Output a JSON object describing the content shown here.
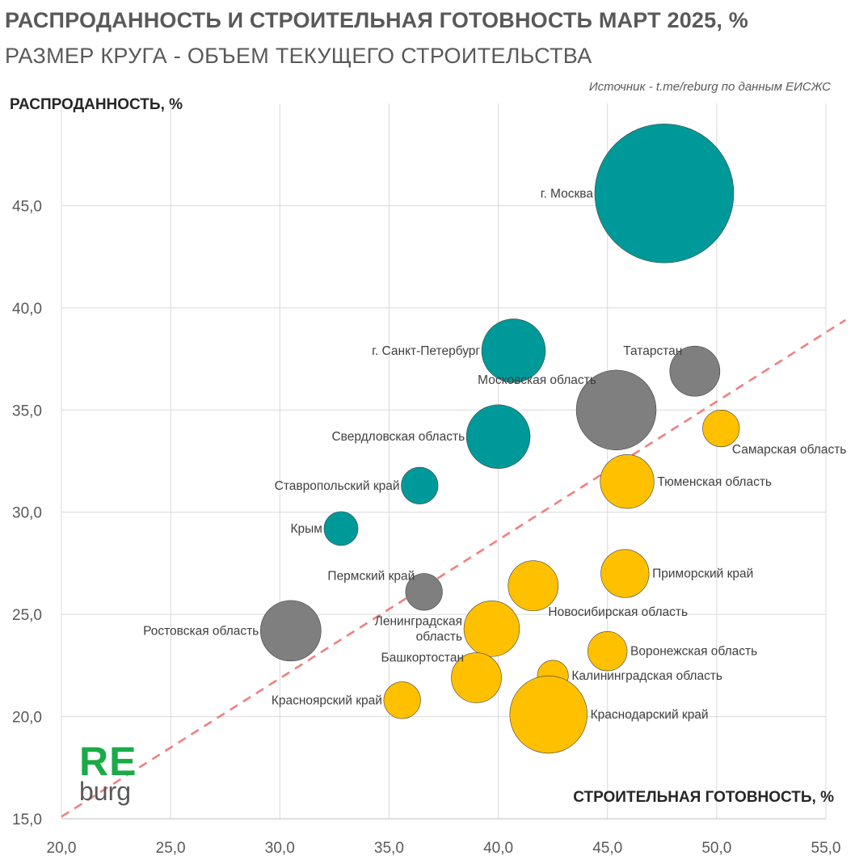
{
  "header": {
    "title": "РАСПРОДАННОСТЬ И СТРОИТЕЛЬНАЯ ГОТОВНОСТЬ МАРТ 2025, %",
    "subtitle": "РАЗМЕР КРУГА - ОБЪЕМ ТЕКУЩЕГО СТРОИТЕЛЬСТВА",
    "source": "Источник - t.me/reburg по данным ЕИСЖС"
  },
  "logo": {
    "re": "RE",
    "burg": "burg"
  },
  "colors": {
    "teal": "#009999",
    "gray": "#7f7f7f",
    "gold": "#ffc000",
    "trend": "#f08080",
    "grid": "#d9d9d9"
  },
  "chart_data": {
    "type": "bubble",
    "title": "РАСПРОДАННОСТЬ И СТРОИТЕЛЬНАЯ ГОТОВНОСТЬ МАРТ 2025, %",
    "xlabel": "СТРОИТЕЛЬНАЯ ГОТОВНОСТЬ, %",
    "ylabel": "РАСПРОДАННОСТЬ, %",
    "xlim": [
      20,
      55
    ],
    "ylim": [
      15,
      50
    ],
    "xticks": [
      "20,0",
      "25,0",
      "30,0",
      "35,0",
      "40,0",
      "45,0",
      "50,0",
      "55,0"
    ],
    "yticks": [
      "15,0",
      "20,0",
      "25,0",
      "30,0",
      "35,0",
      "40,0",
      "45,0"
    ],
    "trendline": {
      "style": "dashed",
      "from": [
        20,
        15.1
      ],
      "to": [
        55,
        38.8
      ]
    },
    "points": [
      {
        "name": "г. Москва",
        "lines": [
          "г. Москва"
        ],
        "x": 47.6,
        "y": 45.6,
        "size": 100,
        "group": "teal",
        "label_pos": "left"
      },
      {
        "name": "г. Санкт-Петербург",
        "lines": [
          "г. Санкт-Петербург"
        ],
        "x": 40.7,
        "y": 37.9,
        "size": 21,
        "group": "teal",
        "label_pos": "left"
      },
      {
        "name": "Татарстан",
        "lines": [
          "Татарстан"
        ],
        "x": 49.0,
        "y": 36.9,
        "size": 13,
        "group": "gray",
        "label_pos": "top-left"
      },
      {
        "name": "Московская область",
        "lines": [
          "Московская область"
        ],
        "x": 45.4,
        "y": 35.0,
        "size": 33,
        "group": "gray",
        "label_pos": "top-left"
      },
      {
        "name": "Самарская область",
        "lines": [
          "Самарская область"
        ],
        "x": 50.2,
        "y": 34.1,
        "size": 7,
        "group": "gold",
        "label_pos": "bottom-right"
      },
      {
        "name": "Свердловская область",
        "lines": [
          "Свердловская область"
        ],
        "x": 40.0,
        "y": 33.7,
        "size": 21,
        "group": "teal",
        "label_pos": "left"
      },
      {
        "name": "Тюменская область",
        "lines": [
          "Тюменская область"
        ],
        "x": 45.9,
        "y": 31.5,
        "size": 15,
        "group": "gold",
        "label_pos": "right"
      },
      {
        "name": "Ставропольский край",
        "lines": [
          "Ставропольский край"
        ],
        "x": 36.4,
        "y": 31.3,
        "size": 7,
        "group": "teal",
        "label_pos": "left"
      },
      {
        "name": "Крым",
        "lines": [
          "Крым"
        ],
        "x": 32.8,
        "y": 29.2,
        "size": 6,
        "group": "teal",
        "label_pos": "left"
      },
      {
        "name": "Приморский край",
        "lines": [
          "Приморский край"
        ],
        "x": 45.8,
        "y": 27.0,
        "size": 12,
        "group": "gold",
        "label_pos": "right"
      },
      {
        "name": "Новосибирская область",
        "lines": [
          "Новосибирская область"
        ],
        "x": 41.6,
        "y": 26.4,
        "size": 13,
        "group": "gold",
        "label_pos": "bottom-right"
      },
      {
        "name": "Пермский край",
        "lines": [
          "Пермский край"
        ],
        "x": 36.6,
        "y": 26.1,
        "size": 7,
        "group": "gray",
        "label_pos": "top-left"
      },
      {
        "name": "Ростовская область",
        "lines": [
          "Ростовская область"
        ],
        "x": 30.5,
        "y": 24.2,
        "size": 19,
        "group": "gray",
        "label_pos": "left"
      },
      {
        "name": "Ленинградская область",
        "lines": [
          "Ленинградская",
          "область"
        ],
        "x": 39.7,
        "y": 24.3,
        "size": 16,
        "group": "gold",
        "label_pos": "left"
      },
      {
        "name": "Воронежская область",
        "lines": [
          "Воронежская область"
        ],
        "x": 45.0,
        "y": 23.2,
        "size": 8,
        "group": "gold",
        "label_pos": "right"
      },
      {
        "name": "Калининградская область",
        "lines": [
          "Калининградская область"
        ],
        "x": 42.5,
        "y": 22.0,
        "size": 5,
        "group": "gold",
        "label_pos": "right"
      },
      {
        "name": "Башкортостан",
        "lines": [
          "Башкортостан"
        ],
        "x": 39.0,
        "y": 21.9,
        "size": 13,
        "group": "gold",
        "label_pos": "top-left"
      },
      {
        "name": "Красноярский край",
        "lines": [
          "Красноярский край"
        ],
        "x": 35.6,
        "y": 20.8,
        "size": 7,
        "group": "gold",
        "label_pos": "left"
      },
      {
        "name": "Краснодарский край",
        "lines": [
          "Краснодарский край"
        ],
        "x": 42.3,
        "y": 20.1,
        "size": 31,
        "group": "gold",
        "label_pos": "right"
      }
    ]
  }
}
